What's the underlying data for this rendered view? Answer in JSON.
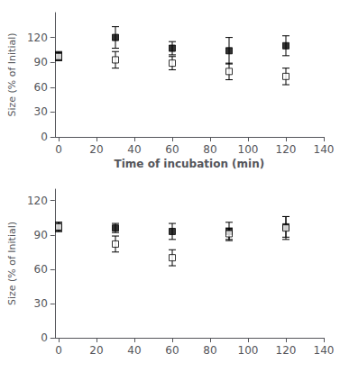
{
  "chart_data": [
    {
      "type": "scatter",
      "x": [
        0,
        30,
        60,
        90,
        120
      ],
      "series": [
        {
          "color": "#000000",
          "marker": "square",
          "values": [
            98,
            120,
            107,
            104,
            110
          ],
          "yerr": [
            5,
            13,
            8,
            16,
            12
          ]
        },
        {
          "color": "#000000",
          "marker": "square_open",
          "values": [
            97,
            93,
            89,
            79,
            73
          ],
          "yerr": [
            5,
            10,
            8,
            10,
            10
          ]
        }
      ],
      "xlabel": "Time of incubation (min)",
      "ylabel": "Size (% of Initial)",
      "xlim": [
        -2,
        140
      ],
      "xticks": [
        0,
        20,
        40,
        60,
        80,
        100,
        120,
        140
      ],
      "ylim": [
        0,
        150
      ],
      "yticks": [
        0,
        30,
        60,
        90,
        120
      ],
      "grid": false
    },
    {
      "type": "scatter",
      "x": [
        0,
        30,
        60,
        90,
        120
      ],
      "series": [
        {
          "color": "#000000",
          "marker": "square",
          "values": [
            97,
            96,
            93,
            93,
            97
          ],
          "yerr": [
            4,
            4,
            7,
            8,
            9
          ]
        },
        {
          "color": "#000000",
          "marker": "square_open",
          "values": [
            97,
            82,
            70,
            91,
            96
          ],
          "yerr": [
            4,
            7,
            7,
            5,
            10
          ]
        }
      ],
      "ylabel": "Size (% of Initial)",
      "xlim": [
        -2,
        140
      ],
      "xticks": [
        0,
        20,
        40,
        60,
        80,
        100,
        120,
        140
      ],
      "ylim": [
        0,
        130
      ],
      "yticks": [
        0,
        30,
        60,
        90,
        120
      ],
      "grid": false
    }
  ]
}
